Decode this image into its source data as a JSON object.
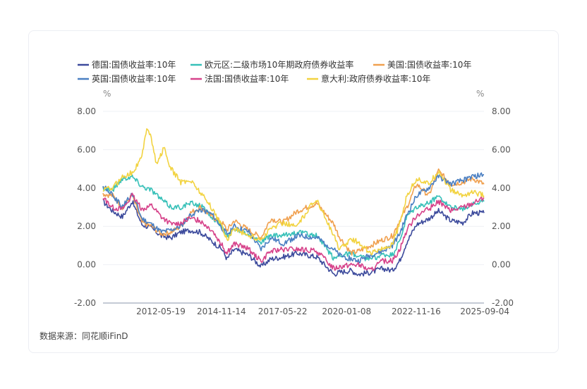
{
  "source_label": "数据来源：同花顺iFinD",
  "chart_data": {
    "type": "line",
    "left_unit": "%",
    "right_unit": "%",
    "ylim": [
      -2,
      8
    ],
    "y_ticks": [
      "8.00",
      "6.00",
      "4.00",
      "2.00",
      "0.00",
      "-2.00"
    ],
    "x_ticks": [
      "2012-05-19",
      "2014-11-14",
      "2017-05-22",
      "2020-01-08",
      "2022-11-16",
      "2025-09-04"
    ],
    "x_tick_values": [
      2012.38,
      2014.87,
      2017.39,
      2020.02,
      2022.88,
      2025.67
    ],
    "xlim": [
      2010.0,
      2025.67
    ],
    "grid": "horizontal",
    "legend_position": "top",
    "series": [
      {
        "name": "德国:国债收益率:10年",
        "color": "#3c4a9c",
        "x": [
          2010.0,
          2010.4,
          2010.8,
          2011.2,
          2011.6,
          2012.0,
          2012.4,
          2012.8,
          2013.2,
          2013.6,
          2014.0,
          2014.5,
          2014.9,
          2015.1,
          2015.4,
          2016.0,
          2016.5,
          2016.9,
          2017.4,
          2018.0,
          2018.8,
          2019.5,
          2019.7,
          2020.2,
          2020.5,
          2021.0,
          2021.5,
          2021.9,
          2022.2,
          2022.5,
          2022.9,
          2023.4,
          2023.8,
          2024.3,
          2024.8,
          2025.2,
          2025.67
        ],
        "y": [
          3.3,
          2.8,
          2.5,
          3.3,
          2.1,
          1.9,
          1.5,
          1.4,
          1.7,
          1.8,
          1.7,
          1.2,
          0.8,
          0.3,
          0.8,
          0.5,
          -0.1,
          0.3,
          0.4,
          0.6,
          0.4,
          -0.5,
          -0.4,
          -0.3,
          -0.5,
          -0.4,
          -0.2,
          -0.3,
          0.2,
          1.2,
          2.1,
          2.4,
          2.8,
          2.3,
          2.2,
          2.7,
          2.7
        ]
      },
      {
        "name": "欧元区:二级市场10年期政府债券收益率",
        "color": "#36c0b8",
        "x": [
          2010.0,
          2010.4,
          2010.8,
          2011.2,
          2011.6,
          2012.0,
          2012.4,
          2012.8,
          2013.2,
          2013.6,
          2014.0,
          2014.5,
          2014.9,
          2015.1,
          2015.4,
          2016.0,
          2016.5,
          2016.9,
          2017.4,
          2018.0,
          2018.8,
          2019.5,
          2019.7,
          2020.2,
          2020.5,
          2021.0,
          2021.5,
          2021.9,
          2022.2,
          2022.5,
          2022.9,
          2023.4,
          2023.8,
          2024.3,
          2024.8,
          2025.2,
          2025.67
        ],
        "y": [
          4.0,
          3.9,
          4.5,
          4.6,
          4.1,
          3.9,
          3.4,
          3.0,
          3.0,
          3.2,
          3.1,
          2.5,
          2.0,
          1.4,
          1.9,
          1.6,
          1.2,
          1.5,
          1.5,
          1.7,
          1.5,
          0.3,
          0.5,
          0.6,
          0.4,
          0.3,
          0.5,
          0.5,
          1.2,
          2.5,
          3.0,
          3.2,
          3.6,
          3.0,
          2.9,
          3.2,
          3.3
        ]
      },
      {
        "name": "美国:国债收益率:10年",
        "color": "#f0a04f",
        "x": [
          2010.0,
          2010.4,
          2010.8,
          2011.2,
          2011.6,
          2012.0,
          2012.4,
          2012.8,
          2013.2,
          2013.6,
          2014.0,
          2014.5,
          2014.9,
          2015.1,
          2015.4,
          2016.0,
          2016.5,
          2016.9,
          2017.4,
          2018.0,
          2018.8,
          2019.5,
          2019.7,
          2020.2,
          2020.5,
          2021.0,
          2021.5,
          2021.9,
          2022.2,
          2022.5,
          2022.9,
          2023.4,
          2023.8,
          2024.3,
          2024.8,
          2025.2,
          2025.67
        ],
        "y": [
          3.7,
          3.6,
          3.0,
          3.6,
          2.2,
          2.0,
          1.6,
          1.7,
          2.0,
          2.7,
          3.0,
          2.5,
          2.2,
          1.8,
          2.3,
          1.8,
          1.4,
          2.4,
          2.2,
          2.8,
          3.2,
          2.1,
          1.5,
          0.6,
          0.7,
          1.0,
          1.3,
          1.5,
          2.3,
          3.0,
          4.2,
          3.6,
          4.9,
          4.2,
          4.3,
          4.5,
          4.2
        ]
      },
      {
        "name": "英国:国债收益率:10年",
        "color": "#4a7fc2",
        "x": [
          2010.0,
          2010.4,
          2010.8,
          2011.2,
          2011.6,
          2012.0,
          2012.4,
          2012.8,
          2013.2,
          2013.6,
          2014.0,
          2014.5,
          2014.9,
          2015.1,
          2015.4,
          2016.0,
          2016.5,
          2016.9,
          2017.4,
          2018.0,
          2018.8,
          2019.5,
          2019.7,
          2020.2,
          2020.5,
          2021.0,
          2021.5,
          2021.9,
          2022.2,
          2022.5,
          2022.9,
          2023.4,
          2023.8,
          2024.3,
          2024.8,
          2025.2,
          2025.67
        ],
        "y": [
          4.1,
          3.6,
          3.0,
          3.7,
          2.4,
          2.1,
          1.7,
          1.8,
          2.0,
          2.6,
          2.9,
          2.6,
          1.9,
          1.6,
          2.0,
          1.7,
          0.8,
          1.4,
          1.1,
          1.5,
          1.4,
          0.8,
          0.5,
          0.3,
          0.2,
          0.5,
          0.7,
          1.0,
          1.6,
          2.6,
          3.6,
          4.0,
          4.6,
          4.2,
          4.4,
          4.6,
          4.7
        ]
      },
      {
        "name": "法国:国债收益率:10年",
        "color": "#d6428a",
        "x": [
          2010.0,
          2010.4,
          2010.8,
          2011.2,
          2011.6,
          2012.0,
          2012.4,
          2012.8,
          2013.2,
          2013.6,
          2014.0,
          2014.5,
          2014.9,
          2015.1,
          2015.4,
          2016.0,
          2016.5,
          2016.9,
          2017.4,
          2018.0,
          2018.8,
          2019.5,
          2019.7,
          2020.2,
          2020.5,
          2021.0,
          2021.5,
          2021.9,
          2022.2,
          2022.5,
          2022.9,
          2023.4,
          2023.8,
          2024.3,
          2024.8,
          2025.2,
          2025.67
        ],
        "y": [
          3.5,
          3.0,
          2.9,
          3.6,
          2.9,
          3.1,
          2.5,
          2.1,
          2.2,
          2.4,
          2.3,
          1.8,
          1.0,
          0.6,
          1.1,
          0.8,
          0.2,
          0.7,
          0.8,
          0.8,
          0.7,
          -0.2,
          -0.1,
          0.0,
          0.0,
          -0.3,
          0.2,
          0.2,
          0.8,
          1.8,
          2.6,
          2.9,
          3.3,
          2.8,
          3.0,
          3.2,
          3.5
        ]
      },
      {
        "name": "意大利:政府债券收益率:10年",
        "color": "#f2d340",
        "x": [
          2010.0,
          2010.4,
          2010.8,
          2011.2,
          2011.6,
          2011.8,
          2011.95,
          2012.2,
          2012.5,
          2012.8,
          2013.2,
          2013.6,
          2014.0,
          2014.5,
          2014.9,
          2015.1,
          2015.4,
          2016.0,
          2016.5,
          2016.9,
          2017.4,
          2018.0,
          2018.5,
          2018.8,
          2019.5,
          2019.7,
          2020.2,
          2020.5,
          2021.0,
          2021.5,
          2021.9,
          2022.2,
          2022.5,
          2022.9,
          2023.4,
          2023.8,
          2024.3,
          2024.8,
          2025.2,
          2025.67
        ],
        "y": [
          3.9,
          4.0,
          4.6,
          4.8,
          5.6,
          7.2,
          6.8,
          5.2,
          6.1,
          5.0,
          4.3,
          4.4,
          3.8,
          2.9,
          2.0,
          1.3,
          1.9,
          1.5,
          1.3,
          1.9,
          2.2,
          2.0,
          3.0,
          3.4,
          1.5,
          0.8,
          1.3,
          1.2,
          0.6,
          0.8,
          1.1,
          2.1,
          3.6,
          4.5,
          4.2,
          4.9,
          3.9,
          3.6,
          3.8,
          3.6
        ]
      }
    ]
  }
}
